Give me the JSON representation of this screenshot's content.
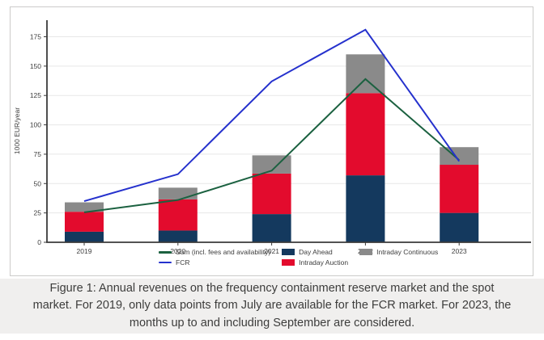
{
  "figure": {
    "caption": "Figure 1: Annual revenues on the frequency containment reserve market and the spot market. For 2019, only data points from July are available for the FCR market. For 2023, the months up to and including September are considered."
  },
  "chart_data": {
    "type": "bar",
    "subtype": "stacked-bars-with-overlay-lines",
    "title": "",
    "xlabel": "",
    "ylabel": "1000 EUR/year",
    "categories": [
      "2019",
      "2020",
      "2021",
      "2022",
      "2023"
    ],
    "bar_series": [
      {
        "name": "Day Ahead",
        "color": "#14395e",
        "values": [
          9,
          10,
          24,
          57,
          25
        ]
      },
      {
        "name": "Intraday Auction",
        "color": "#e30b2d",
        "values": [
          17,
          26.5,
          34.5,
          70,
          41
        ]
      },
      {
        "name": "Intraday Continuous",
        "color": "#8a8a8a",
        "values": [
          8,
          10,
          15.5,
          33,
          15
        ]
      }
    ],
    "bar_totals": [
      34,
      46.5,
      74,
      160,
      81
    ],
    "line_series": [
      {
        "name": "Sum (incl. fees and availability)",
        "color": "#1b6140",
        "values": [
          25.5,
          36,
          61,
          139,
          70
        ]
      },
      {
        "name": "FCR",
        "color": "#2531cd",
        "values": [
          35,
          58,
          137,
          181,
          69
        ]
      }
    ],
    "yticks": [
      0,
      25,
      50,
      75,
      100,
      125,
      150,
      175
    ],
    "ylim": [
      0,
      190
    ],
    "grid": true,
    "legend_position": "bottom"
  },
  "theme": {
    "caption_background": "#f0efee",
    "caption_text_color": "#3d3d3c",
    "card_border_color": "#cccbca",
    "axis_color": "#3a3a3a",
    "grid_color": "#e7e7e7",
    "tick_label_color": "#3d3d3d"
  }
}
